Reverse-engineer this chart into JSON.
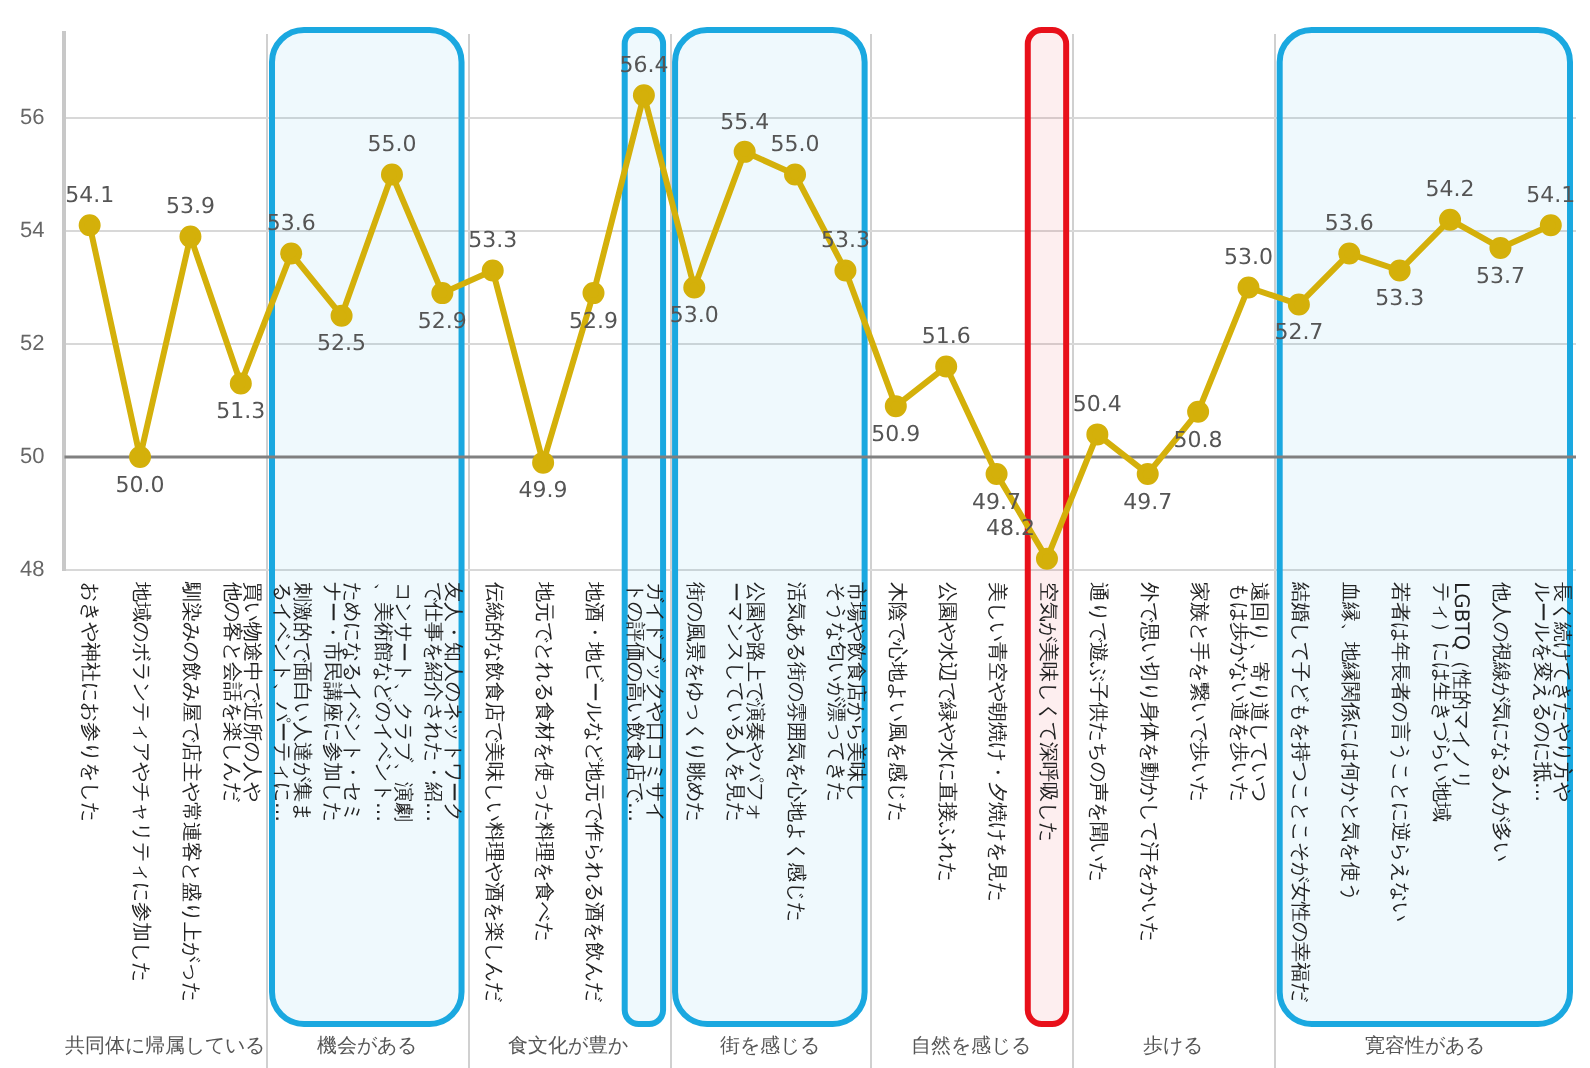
{
  "chart_data": {
    "type": "line",
    "categories": [
      "おきや神社にお参りをした",
      "地域のボランティアやチャリティに参加した",
      "馴染みの飲み屋で店主や常連客と盛り上がった",
      "買い物途中で近所の人や他の客と会話を楽しんだ",
      "刺激的で面白い人達が集まるイベント、パーティに…",
      "ためになるイベント・セミナー・市民講座に参加した",
      "コンサート、クラブ、演劇、美術館などのイベント…",
      "友人・知人のネットワークで仕事を紹介された・紹…",
      "伝統的な飲食店で美味しい料理や酒を楽しんだ",
      "地元でとれる食材を使った料理を食べた",
      "地酒・地ビールなど地元で作られる酒を飲んだ",
      "ガイドブックや口コミサイトの評価の高い飲食店で…",
      "街の風景をゆっくり眺めた",
      "公園や路上で演奏やパフォーマンスしている人を見た",
      "活気ある街の雰囲気を心地よく感じた",
      "市場や飲食店から美味しそうな匂いが漂ってきた",
      "木陰で心地よい風を感じた",
      "公園や水辺で緑や水に直接ふれた",
      "美しい青空や朝焼け・夕焼けを見た",
      "空気が美味しくて深呼吸した",
      "通りで遊ぶ子供たちの声を聞いた",
      "外で思い切り身体を動かして汗をかいた",
      "家族と手を繋いで歩いた",
      "遠回り、寄り道していつもは歩かない道を歩いた",
      "結婚して子どもを持つことこそが女性の幸福だ",
      "血縁、地縁関係には何かと気を使う",
      "若者は年長者の言うことに逆らえない",
      "LGBTQ（性的マイノリティ）には生きづらい地域",
      "他人の視線が気になる人が多い",
      "長く続けてきたやり方やルールを変えるのに抵…"
    ],
    "series": [
      {
        "color": "#d4b00a",
        "values": [
          54.1,
          50.0,
          53.9,
          51.3,
          53.6,
          52.5,
          55.0,
          52.9,
          53.3,
          49.9,
          52.9,
          56.4,
          53.0,
          55.4,
          55.0,
          53.3,
          50.9,
          51.6,
          49.7,
          48.2,
          50.4,
          49.7,
          50.8,
          53.0,
          52.7,
          53.6,
          53.3,
          54.2,
          53.7,
          54.1
        ],
        "value_labels": [
          "54.1",
          "50.0",
          "53.9",
          "51.3",
          "53.6",
          "52.5",
          "55.0",
          "52.9",
          "53.3",
          "49.9",
          "52.9",
          "56.4",
          "53.0",
          "55.4",
          "55.0",
          "53.3",
          "50.9",
          "51.6",
          "49.7",
          "48.2",
          "50.4",
          "49.7",
          "50.8",
          "53.0",
          "52.7",
          "53.6",
          "53.3",
          "54.2",
          "53.7",
          "54.1"
        ]
      }
    ],
    "ylim": [
      48,
      57.5
    ],
    "yticks": [
      48,
      50,
      52,
      54,
      56
    ],
    "grid": "y",
    "marker": "circle",
    "ref_lines": [
      {
        "axis": "y",
        "value": 50,
        "color": "#808080"
      }
    ],
    "bands": [
      {
        "axis": "x",
        "from": "刺激的で面白い人達が集まるイベント、パーティに…",
        "to": "友人・知人のネットワークで仕事を紹介された・紹…",
        "color": "#1aa8e0"
      },
      {
        "axis": "x",
        "from": "ガイドブックや口コミサイトの評価の高い飲食店で…",
        "to": "ガイドブックや口コミサイトの評価の高い飲食店で…",
        "color": "#1aa8e0"
      },
      {
        "axis": "x",
        "from": "街の風景をゆっくり眺めた",
        "to": "市場や飲食店から美味しそうな匂いが漂ってきた",
        "color": "#1aa8e0"
      },
      {
        "axis": "x",
        "from": "空気が美味しくて深呼吸した",
        "to": "空気が美味しくて深呼吸した",
        "color": "#e8101a"
      },
      {
        "axis": "x",
        "from": "結婚して子どもを持つことこそが女性の幸福だ",
        "to": "長く続けてきたやり方やルールを変えるのに抵…",
        "color": "#1aa8e0"
      }
    ],
    "annotations": [
      "共同体に帰属している",
      "機会がある",
      "食文化が豊か",
      "街を感じる",
      "自然を感じる",
      "歩ける",
      "寛容性がある"
    ]
  }
}
